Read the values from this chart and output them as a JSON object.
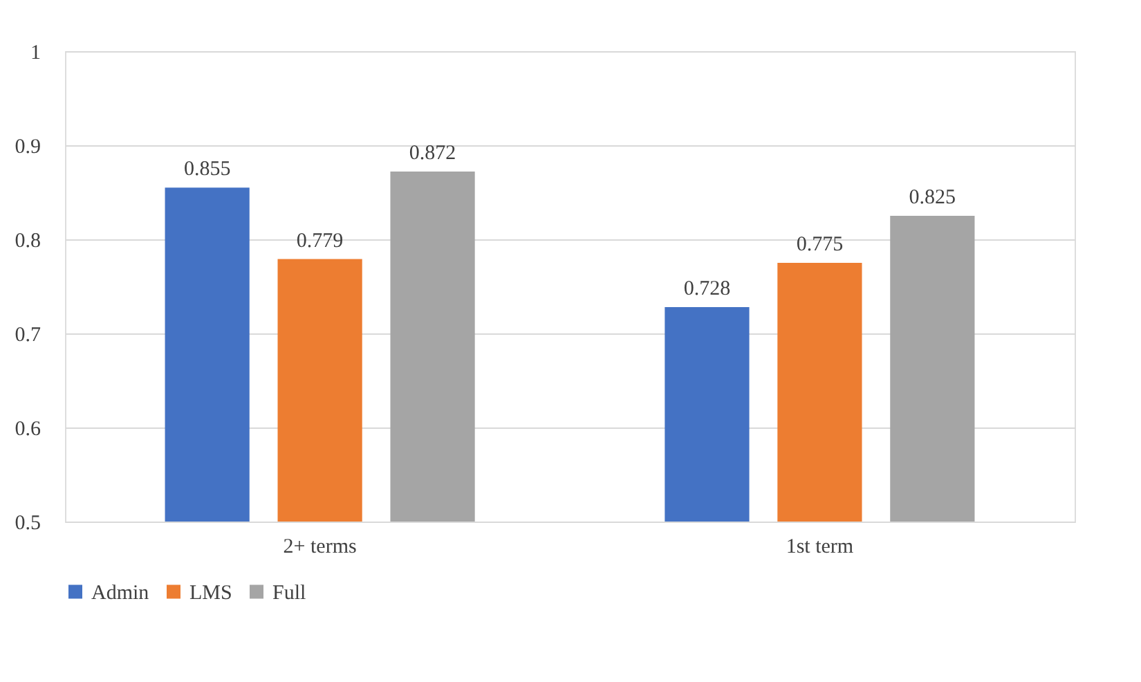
{
  "chart_data": {
    "type": "bar",
    "categories": [
      "2+ terms",
      "1st term"
    ],
    "series": [
      {
        "name": "Admin",
        "color": "#4472c4",
        "values": [
          0.855,
          0.728
        ]
      },
      {
        "name": "LMS",
        "color": "#ed7d31",
        "values": [
          0.779,
          0.775
        ]
      },
      {
        "name": "Full",
        "color": "#a5a5a5",
        "values": [
          0.872,
          0.825
        ]
      }
    ],
    "ylim": [
      0.5,
      1
    ],
    "yticks": [
      0.5,
      0.6,
      0.7,
      0.8,
      0.9,
      1
    ],
    "grid": "y",
    "legend": "bottom",
    "data_labels": true
  }
}
